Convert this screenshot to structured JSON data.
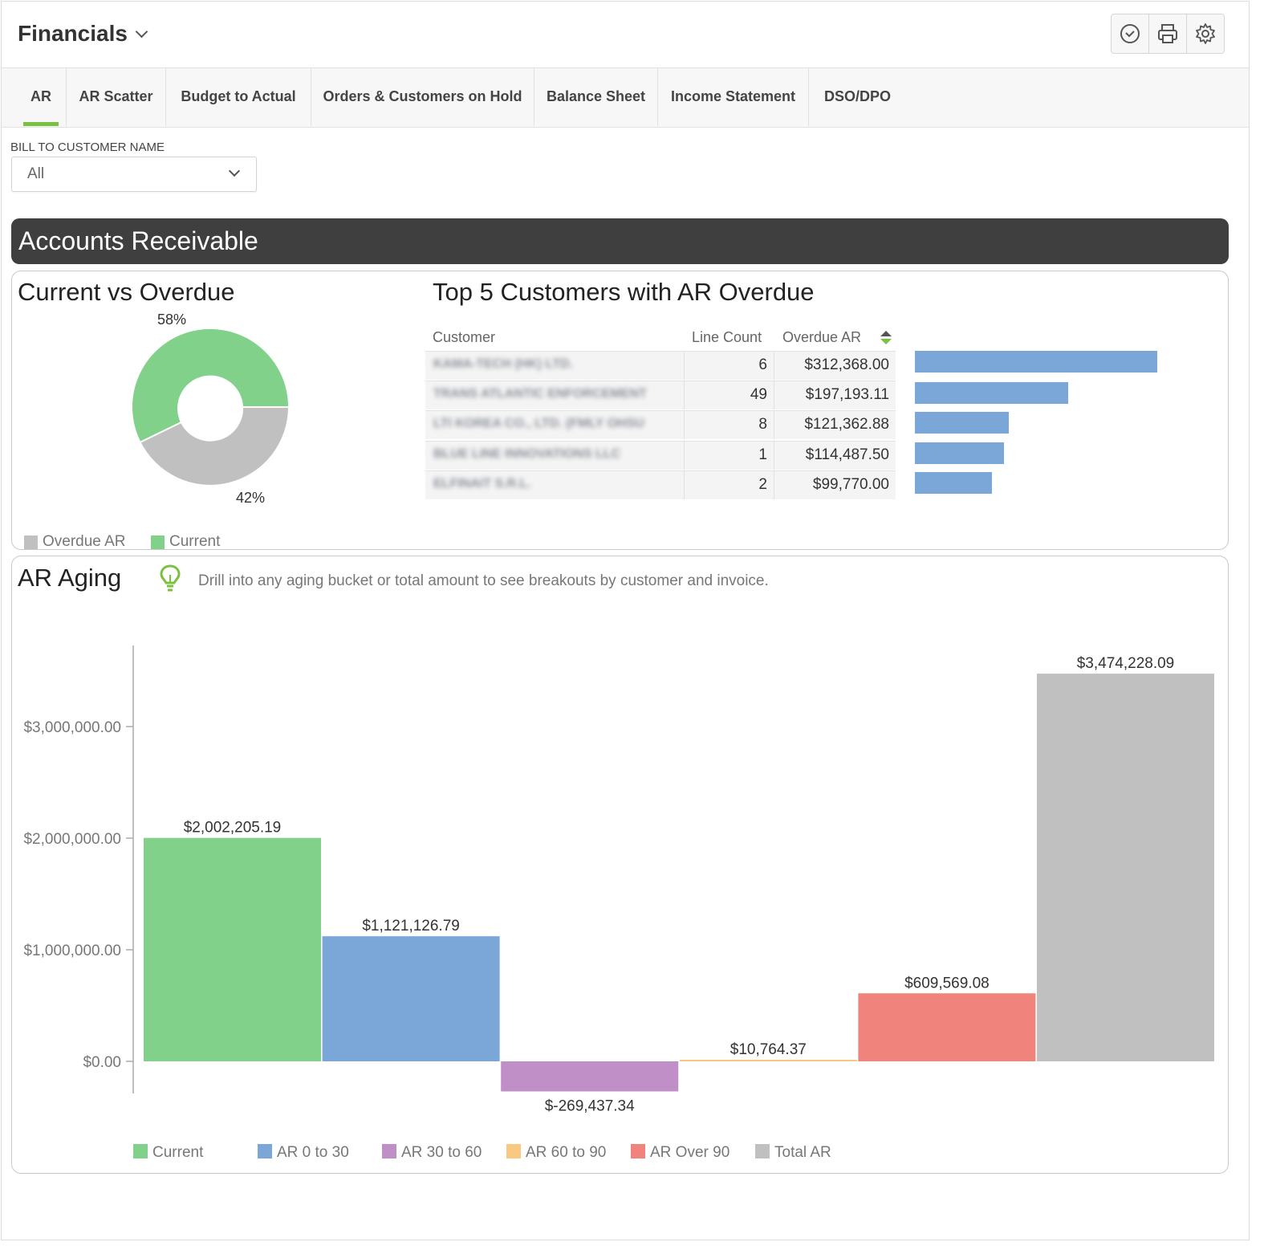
{
  "header": {
    "title": "Financials",
    "toolbar": [
      {
        "name": "schedule-button",
        "icon": "clock-icon"
      },
      {
        "name": "print-button",
        "icon": "printer-icon"
      },
      {
        "name": "settings-button",
        "icon": "gear-icon"
      }
    ]
  },
  "tabs": [
    {
      "label": "AR",
      "active": true
    },
    {
      "label": "AR Scatter"
    },
    {
      "label": "Budget to Actual"
    },
    {
      "label": "Orders & Customers on Hold"
    },
    {
      "label": "Balance Sheet"
    },
    {
      "label": "Income Statement"
    },
    {
      "label": "DSO/DPO"
    }
  ],
  "filter": {
    "label": "BILL TO CUSTOMER NAME",
    "value": "All"
  },
  "section": {
    "title": "Accounts Receivable"
  },
  "donut": {
    "title": "Current vs Overdue",
    "label_current": "58%",
    "label_overdue": "42%",
    "legend": [
      {
        "label": "Overdue AR",
        "color": "#c0c0c0"
      },
      {
        "label": "Current",
        "color": "#82d18a"
      }
    ]
  },
  "top5": {
    "title": "Top 5 Customers with AR Overdue",
    "columns": [
      "Customer",
      "Line Count",
      "Overdue AR"
    ],
    "rows": [
      {
        "customer": "KAMA-TECH (HK) LTD.",
        "count": "6",
        "amount": "$312,368.00",
        "value": 312368.0
      },
      {
        "customer": "TRANS ATLANTIC ENFORCEMENT",
        "count": "49",
        "amount": "$197,193.11",
        "value": 197193.11
      },
      {
        "customer": "LTI KOREA CO., LTD. (FMLY OHSU",
        "count": "8",
        "amount": "$121,362.88",
        "value": 121362.88
      },
      {
        "customer": "BLUE LINE INNOVATIONS LLC",
        "count": "1",
        "amount": "$114,487.50",
        "value": 114487.5
      },
      {
        "customer": "ELFINAIT S.R.L.",
        "count": "2",
        "amount": "$99,770.00",
        "value": 99770.0
      }
    ],
    "bar_color": "#7aa7d7",
    "sort_icon": "sort-icon"
  },
  "aging": {
    "title": "AR Aging",
    "tip_icon": "lightbulb-icon",
    "tip": "Drill into any aging bucket or total amount to see breakouts by customer and invoice."
  },
  "chart_data": {
    "type": "bar",
    "categories": [
      "Current",
      "AR 0 to 30",
      "AR 30 to 60",
      "AR 60 to 90",
      "AR Over 90",
      "Total AR"
    ],
    "values": [
      2002205.19,
      1121126.79,
      -269437.34,
      10764.37,
      609569.08,
      3474228.09
    ],
    "data_labels": [
      "$2,002,205.19",
      "$1,121,126.79",
      "$-269,437.34",
      "$10,764.37",
      "$609,569.08",
      "$3,474,228.09"
    ],
    "colors": [
      "#82d18a",
      "#7aa7d7",
      "#c08fc8",
      "#f9c883",
      "#f0837c",
      "#c0c0c0"
    ],
    "y_ticks": [
      0,
      1000000,
      2000000,
      3000000
    ],
    "y_tick_labels": [
      "$0.00",
      "$1,000,000.00",
      "$2,000,000.00",
      "$3,000,000.00"
    ],
    "ylim": [
      -280000,
      3700000
    ],
    "legend_position": "bottom",
    "grid": false
  }
}
